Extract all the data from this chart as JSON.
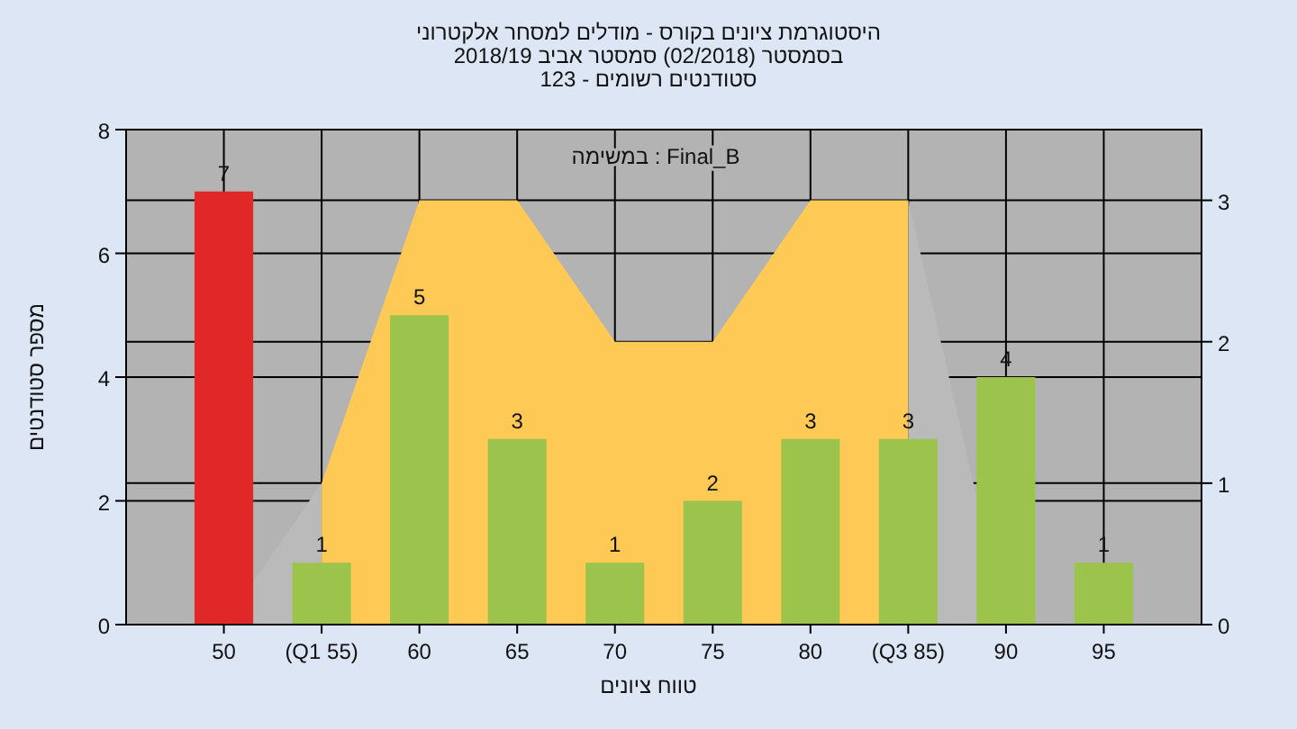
{
  "chart_data": {
    "type": "bar",
    "title": "היסטוגרמת ציונים בקורס - מודלים למסחר אלקטרוני\nבסמסטר  (02/2018)  סמסטר אביב 2018/19\nסטודנטים רשומים - 123",
    "xlabel": "טווח ציונים",
    "ylabel": "מספר סטודנטים",
    "annotations": [
      "במשימה : Final_B"
    ],
    "categories": [
      "50",
      "(Q1 55)",
      "60",
      "65",
      "70",
      "75",
      "80",
      "(Q3 85)",
      "90",
      "95"
    ],
    "series": [
      {
        "type": "area",
        "axis": "y2",
        "color": "#bababa",
        "values": [
          0,
          1,
          null,
          null,
          null,
          null,
          null,
          3,
          0,
          0
        ]
      },
      {
        "type": "area",
        "axis": "y2",
        "color": "#ffc955",
        "values": [
          null,
          1,
          3,
          3,
          2,
          2,
          3,
          3,
          null,
          null
        ]
      },
      {
        "colors": [
          "#e02828",
          "#9cc44c",
          "#9cc44c",
          "#9cc44c",
          "#9cc44c",
          "#9cc44c",
          "#9cc44c",
          "#9cc44c",
          "#9cc44c",
          "#9cc44c"
        ],
        "values": [
          7,
          1,
          5,
          3,
          1,
          2,
          3,
          3,
          4,
          1
        ],
        "value_labels": [
          "7",
          "1",
          "5",
          "3",
          "1",
          "2",
          "3",
          "3",
          "4",
          "1"
        ]
      }
    ],
    "ylim": [
      0,
      8
    ],
    "yticks": [
      0,
      2,
      4,
      6,
      8
    ],
    "y2lim": [
      0,
      3.5
    ],
    "y2ticks": [
      0,
      1,
      2,
      3
    ],
    "grid": true
  }
}
